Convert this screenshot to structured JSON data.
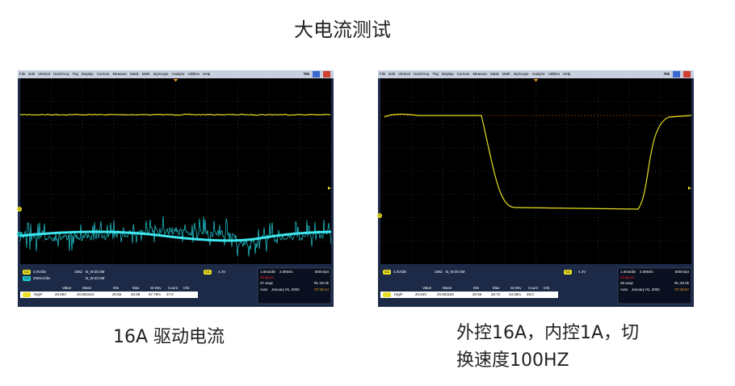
{
  "title": "大电流测试",
  "scopes": [
    {
      "menu": [
        "File",
        "Edit",
        "Vertical",
        "Horiz/Acq",
        "Trig",
        "Display",
        "Cursors",
        "Measure",
        "Mask",
        "Math",
        "MyScope",
        "Analyze",
        "Utilities",
        "Help"
      ],
      "brand": "Tek",
      "markers": [
        "1",
        "2"
      ],
      "channels": [
        {
          "id": "C1",
          "scale": "4.0V/div",
          "coupling": "1MΩ",
          "bw": "B_W:20.0M"
        },
        {
          "id": "C2",
          "scale": "200mV/div",
          "bw": "B_W:20.0M"
        }
      ],
      "trigger": {
        "id": "C1",
        "level": "4.4V"
      },
      "horizontal": {
        "scale": "1.0ms/div",
        "rate": "2.0MS/s",
        "resolution": "500ns/pt"
      },
      "state": "Stopped",
      "acqs": "27 acqs",
      "record": "RL:20.0k",
      "mode": "Auto",
      "date": "January 01, 2002",
      "time": "07:45:14",
      "measure": {
        "headers": [
          "Value",
          "Mean",
          "Min",
          "Max",
          "St Dev",
          "Count",
          "Info"
        ],
        "label": "High*",
        "values": [
          "20.56V",
          "20.604444",
          "20.56",
          "20.88",
          "67.79m",
          "27.0"
        ]
      },
      "caption": [
        "16A 驱动电流"
      ]
    },
    {
      "menu": [
        "File",
        "Edit",
        "Vertical",
        "Horiz/Acq",
        "Trig",
        "Display",
        "Cursors",
        "Measure",
        "Mask",
        "Math",
        "MyScope",
        "Analyze",
        "Utilities",
        "Help"
      ],
      "brand": "Tek",
      "markers": [
        "1"
      ],
      "channels": [
        {
          "id": "C1",
          "scale": "4.0V/div",
          "coupling": "1MΩ",
          "bw": "B_W:20.0M"
        }
      ],
      "trigger": {
        "id": "C1",
        "level": "4.4V"
      },
      "horizontal": {
        "scale": "1.0ms/div",
        "rate": "2.0MS/s",
        "resolution": "500ns/pt"
      },
      "state": "Stopped",
      "acqs": "49 acqs",
      "record": "RL:20.0k",
      "mode": "Auto",
      "date": "January 01, 2002",
      "time": "07:46:57",
      "measure": {
        "headers": [
          "Value",
          "Mean",
          "Min",
          "Max",
          "St Dev",
          "Count",
          "Info"
        ],
        "label": "High*",
        "values": [
          "20.64V",
          "20.601183",
          "20.56",
          "20.72",
          "43.36m",
          "49.0"
        ]
      },
      "caption": [
        "外控16A，内控1A，切",
        "换速度100HZ"
      ]
    }
  ]
}
